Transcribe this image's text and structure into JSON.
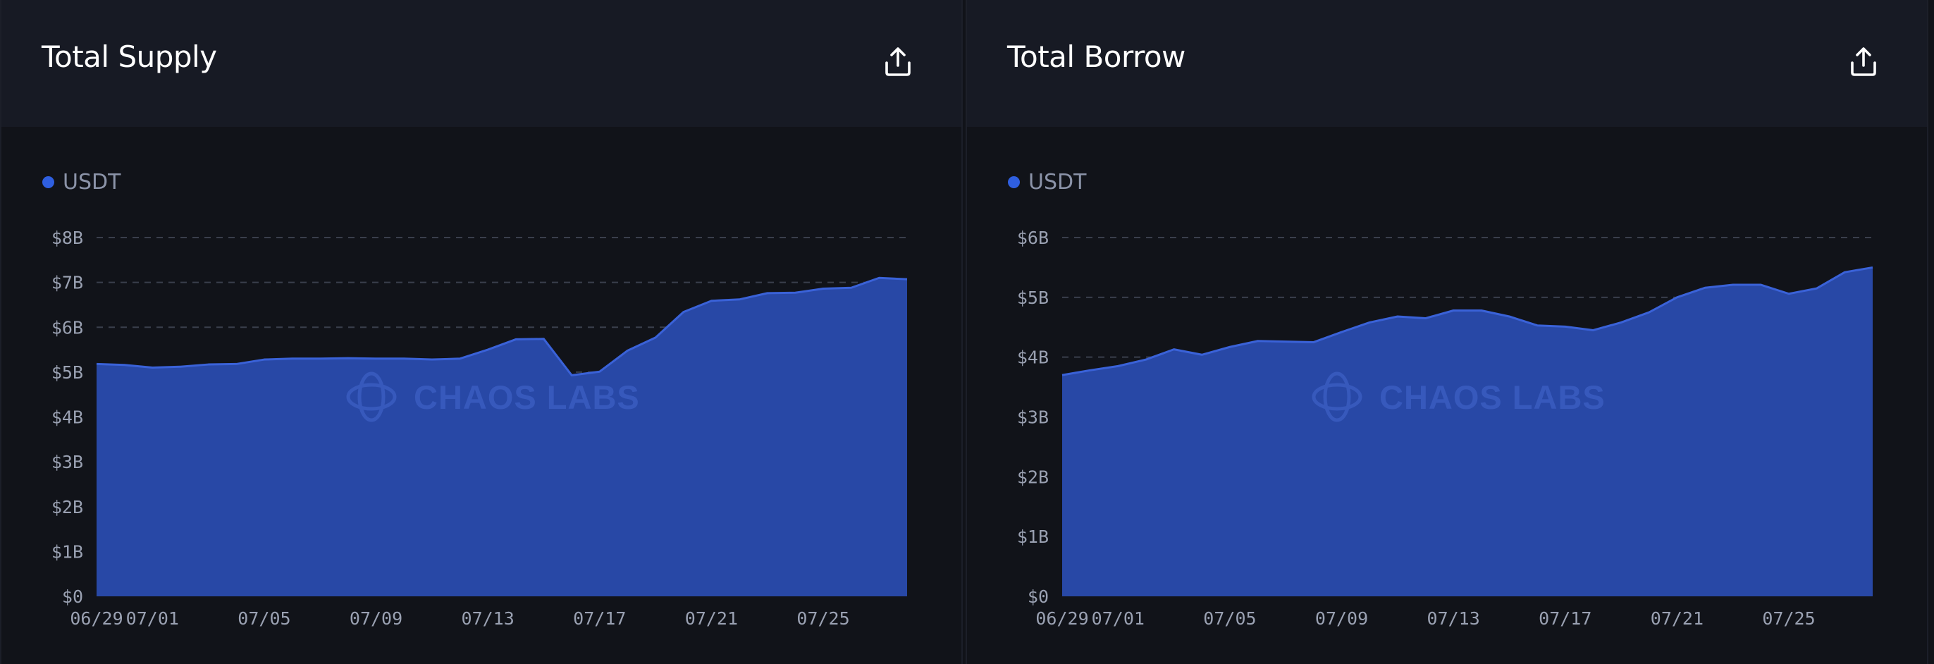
{
  "colors": {
    "series": "#2848a6",
    "series_line": "#3a62d8",
    "legend_dot": "#2f5fe0"
  },
  "watermark": "CHAOS LABS",
  "charts": [
    {
      "title": "Total Supply",
      "export_icon": "export-icon",
      "legend": "USDT"
    },
    {
      "title": "Total Borrow",
      "export_icon": "export-icon",
      "legend": "USDT"
    }
  ],
  "chart_data": [
    {
      "type": "area",
      "title": "Total Supply",
      "x": [
        "06/29",
        "06/30",
        "07/01",
        "07/02",
        "07/03",
        "07/04",
        "07/05",
        "07/06",
        "07/07",
        "07/08",
        "07/09",
        "07/10",
        "07/11",
        "07/12",
        "07/13",
        "07/14",
        "07/15",
        "07/16",
        "07/17",
        "07/18",
        "07/19",
        "07/20",
        "07/21",
        "07/22",
        "07/23",
        "07/24",
        "07/25",
        "07/26",
        "07/27",
        "07/28"
      ],
      "x_tick_labels": [
        "06/29",
        "07/01",
        "07/05",
        "07/09",
        "07/13",
        "07/17",
        "07/21",
        "07/25"
      ],
      "y_tick_labels": [
        "$0",
        "$1B",
        "$2B",
        "$3B",
        "$4B",
        "$5B",
        "$6B",
        "$7B",
        "$8B"
      ],
      "ylim": [
        0,
        8
      ],
      "y_unit": "B",
      "grid": true,
      "legend_position": "top-left",
      "series": [
        {
          "name": "USDT",
          "values": [
            5.18,
            5.16,
            5.1,
            5.12,
            5.17,
            5.18,
            5.28,
            5.3,
            5.3,
            5.31,
            5.3,
            5.3,
            5.28,
            5.3,
            5.5,
            5.73,
            5.74,
            4.93,
            5.01,
            5.48,
            5.77,
            6.34,
            6.59,
            6.62,
            6.76,
            6.77,
            6.86,
            6.88,
            7.1,
            7.07
          ]
        }
      ]
    },
    {
      "type": "area",
      "title": "Total Borrow",
      "x": [
        "06/29",
        "06/30",
        "07/01",
        "07/02",
        "07/03",
        "07/04",
        "07/05",
        "07/06",
        "07/07",
        "07/08",
        "07/09",
        "07/10",
        "07/11",
        "07/12",
        "07/13",
        "07/14",
        "07/15",
        "07/16",
        "07/17",
        "07/18",
        "07/19",
        "07/20",
        "07/21",
        "07/22",
        "07/23",
        "07/24",
        "07/25",
        "07/26",
        "07/27",
        "07/28"
      ],
      "x_tick_labels": [
        "06/29",
        "07/01",
        "07/05",
        "07/09",
        "07/13",
        "07/17",
        "07/21",
        "07/25"
      ],
      "y_tick_labels": [
        "$0",
        "$1B",
        "$2B",
        "$3B",
        "$4B",
        "$5B",
        "$6B"
      ],
      "ylim": [
        0,
        6
      ],
      "y_unit": "B",
      "grid": true,
      "legend_position": "top-left",
      "series": [
        {
          "name": "USDT",
          "values": [
            3.7,
            3.78,
            3.85,
            3.96,
            4.13,
            4.04,
            4.17,
            4.27,
            4.26,
            4.25,
            4.42,
            4.58,
            4.68,
            4.65,
            4.78,
            4.78,
            4.68,
            4.53,
            4.51,
            4.45,
            4.58,
            4.75,
            5.0,
            5.16,
            5.21,
            5.21,
            5.06,
            5.15,
            5.42,
            5.5
          ]
        }
      ]
    }
  ]
}
